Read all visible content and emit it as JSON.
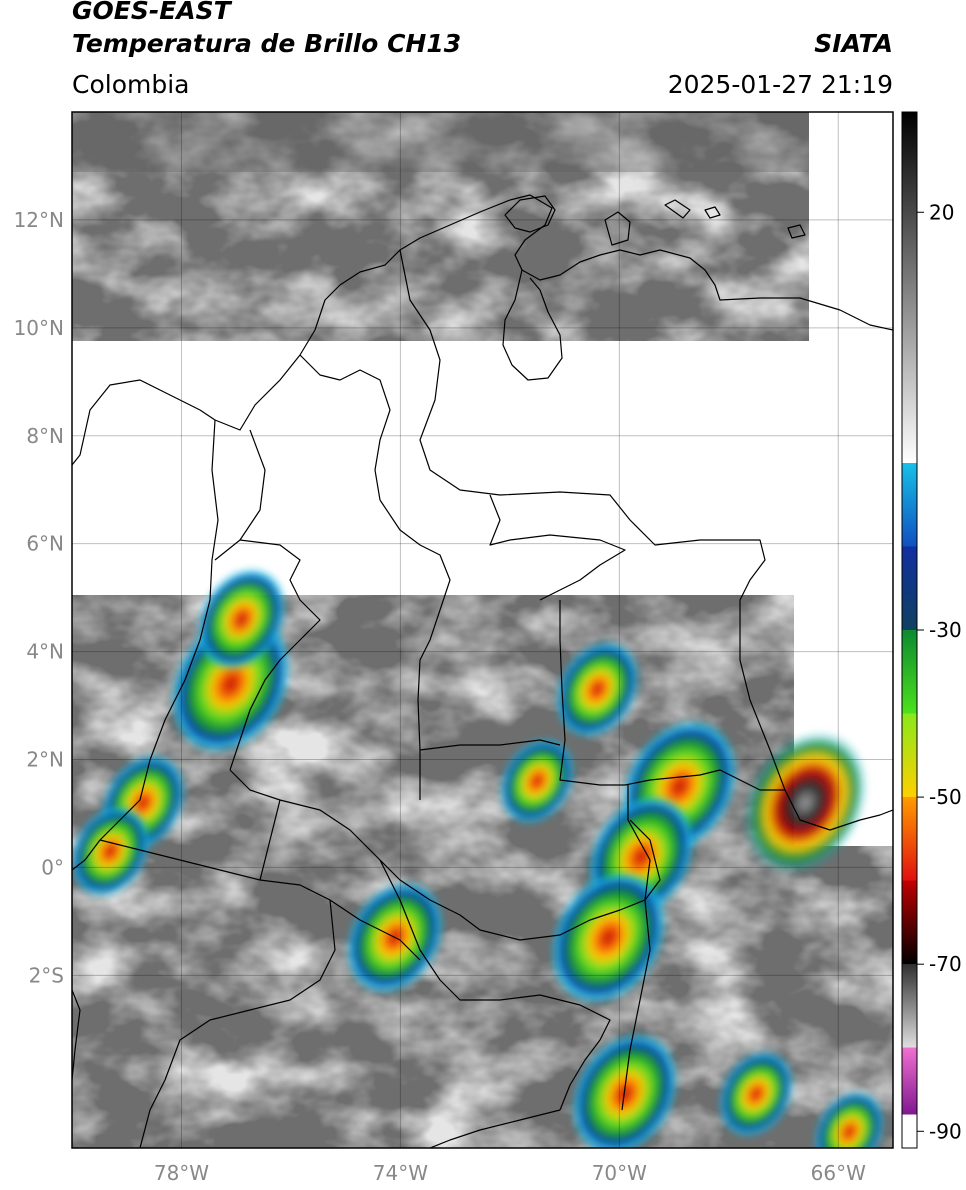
{
  "header": {
    "satellite": "GOES-EAST",
    "product": "Temperatura de Brillo CH13",
    "brand": "SIATA",
    "region": "Colombia",
    "datetime": "2025-01-27 21:19"
  },
  "map": {
    "lon_range": [
      -80,
      -65
    ],
    "lat_range": [
      -5.2,
      14
    ],
    "grid_lines": true,
    "lat_labels": [
      {
        "lat": 12,
        "text": "12°N"
      },
      {
        "lat": 10,
        "text": "10°N"
      },
      {
        "lat": 8,
        "text": "8°N"
      },
      {
        "lat": 6,
        "text": "6°N"
      },
      {
        "lat": 4,
        "text": "4°N"
      },
      {
        "lat": 2,
        "text": "2°N"
      },
      {
        "lat": 0,
        "text": "0°"
      },
      {
        "lat": -2,
        "text": "2°S"
      }
    ],
    "lon_labels": [
      {
        "lon": -78,
        "text": "78°W"
      },
      {
        "lon": -74,
        "text": "74°W"
      },
      {
        "lon": -70,
        "text": "70°W"
      },
      {
        "lon": -66,
        "text": "66°W"
      }
    ],
    "missing_band_lat": [
      5.2,
      9.8
    ],
    "colors": {
      "background_gray": "#6e6e6e",
      "cloud_gray": "#c8c8c8",
      "coast": "#000000"
    },
    "storm_cells": [
      {
        "name": "pacific-cell",
        "lon": -77.1,
        "lat": 3.4,
        "intensity": 0.95
      },
      {
        "name": "choco-cell",
        "lon": -76.9,
        "lat": 4.6,
        "intensity": 0.6
      },
      {
        "name": "narino-cell",
        "lon": -78.7,
        "lat": 1.2,
        "intensity": 0.55
      },
      {
        "name": "ecuador-coast-cell",
        "lon": -79.3,
        "lat": 0.3,
        "intensity": 0.5
      },
      {
        "name": "meta-cell",
        "lon": -70.4,
        "lat": 3.3,
        "intensity": 0.55
      },
      {
        "name": "guaviare-cell",
        "lon": -71.5,
        "lat": 1.6,
        "intensity": 0.45
      },
      {
        "name": "vaupes-cell",
        "lon": -68.9,
        "lat": 1.5,
        "intensity": 0.9
      },
      {
        "name": "amazonas-cell-north",
        "lon": -69.6,
        "lat": 0.2,
        "intensity": 0.8
      },
      {
        "name": "amazonas-cell-south",
        "lon": -70.2,
        "lat": -1.3,
        "intensity": 0.9
      },
      {
        "name": "putumayo-cell",
        "lon": -74.1,
        "lat": -1.3,
        "intensity": 0.7
      },
      {
        "name": "brazil-cell",
        "lon": -69.9,
        "lat": -4.2,
        "intensity": 0.8
      },
      {
        "name": "venezuela-border-cell",
        "lon": -66.6,
        "lat": 1.2,
        "intensity": 1.0
      },
      {
        "name": "southeast-cell",
        "lon": -67.5,
        "lat": -4.2,
        "intensity": 0.45
      },
      {
        "name": "far-south-cell",
        "lon": -65.8,
        "lat": -4.9,
        "intensity": 0.4
      }
    ]
  },
  "colorbar": {
    "ticks": [
      {
        "value": 20,
        "text": "20"
      },
      {
        "value": -30,
        "text": "-30"
      },
      {
        "value": -50,
        "text": "-50"
      },
      {
        "value": -70,
        "text": "-70"
      },
      {
        "value": -90,
        "text": "-90"
      }
    ],
    "segments": [
      {
        "from": 32,
        "to": -10,
        "c1": "#000000",
        "c2": "#ffffff"
      },
      {
        "from": -10,
        "to": -20,
        "c1": "#18c0e8",
        "c2": "#1050c0"
      },
      {
        "from": -20,
        "to": -30,
        "c1": "#1030a0",
        "c2": "#104060"
      },
      {
        "from": -30,
        "to": -40,
        "c1": "#0c8a30",
        "c2": "#4ce21c"
      },
      {
        "from": -40,
        "to": -50,
        "c1": "#8ae81c",
        "c2": "#ffd000"
      },
      {
        "from": -50,
        "to": -60,
        "c1": "#ff9c00",
        "c2": "#e01010"
      },
      {
        "from": -60,
        "to": -70,
        "c1": "#c00000",
        "c2": "#000000"
      },
      {
        "from": -70,
        "to": -80,
        "c1": "#303030",
        "c2": "#e0e0e0"
      },
      {
        "from": -80,
        "to": -88,
        "c1": "#f070d0",
        "c2": "#801890"
      },
      {
        "from": -88,
        "to": -92,
        "c1": "#ffffff",
        "c2": "#ffffff"
      }
    ]
  }
}
